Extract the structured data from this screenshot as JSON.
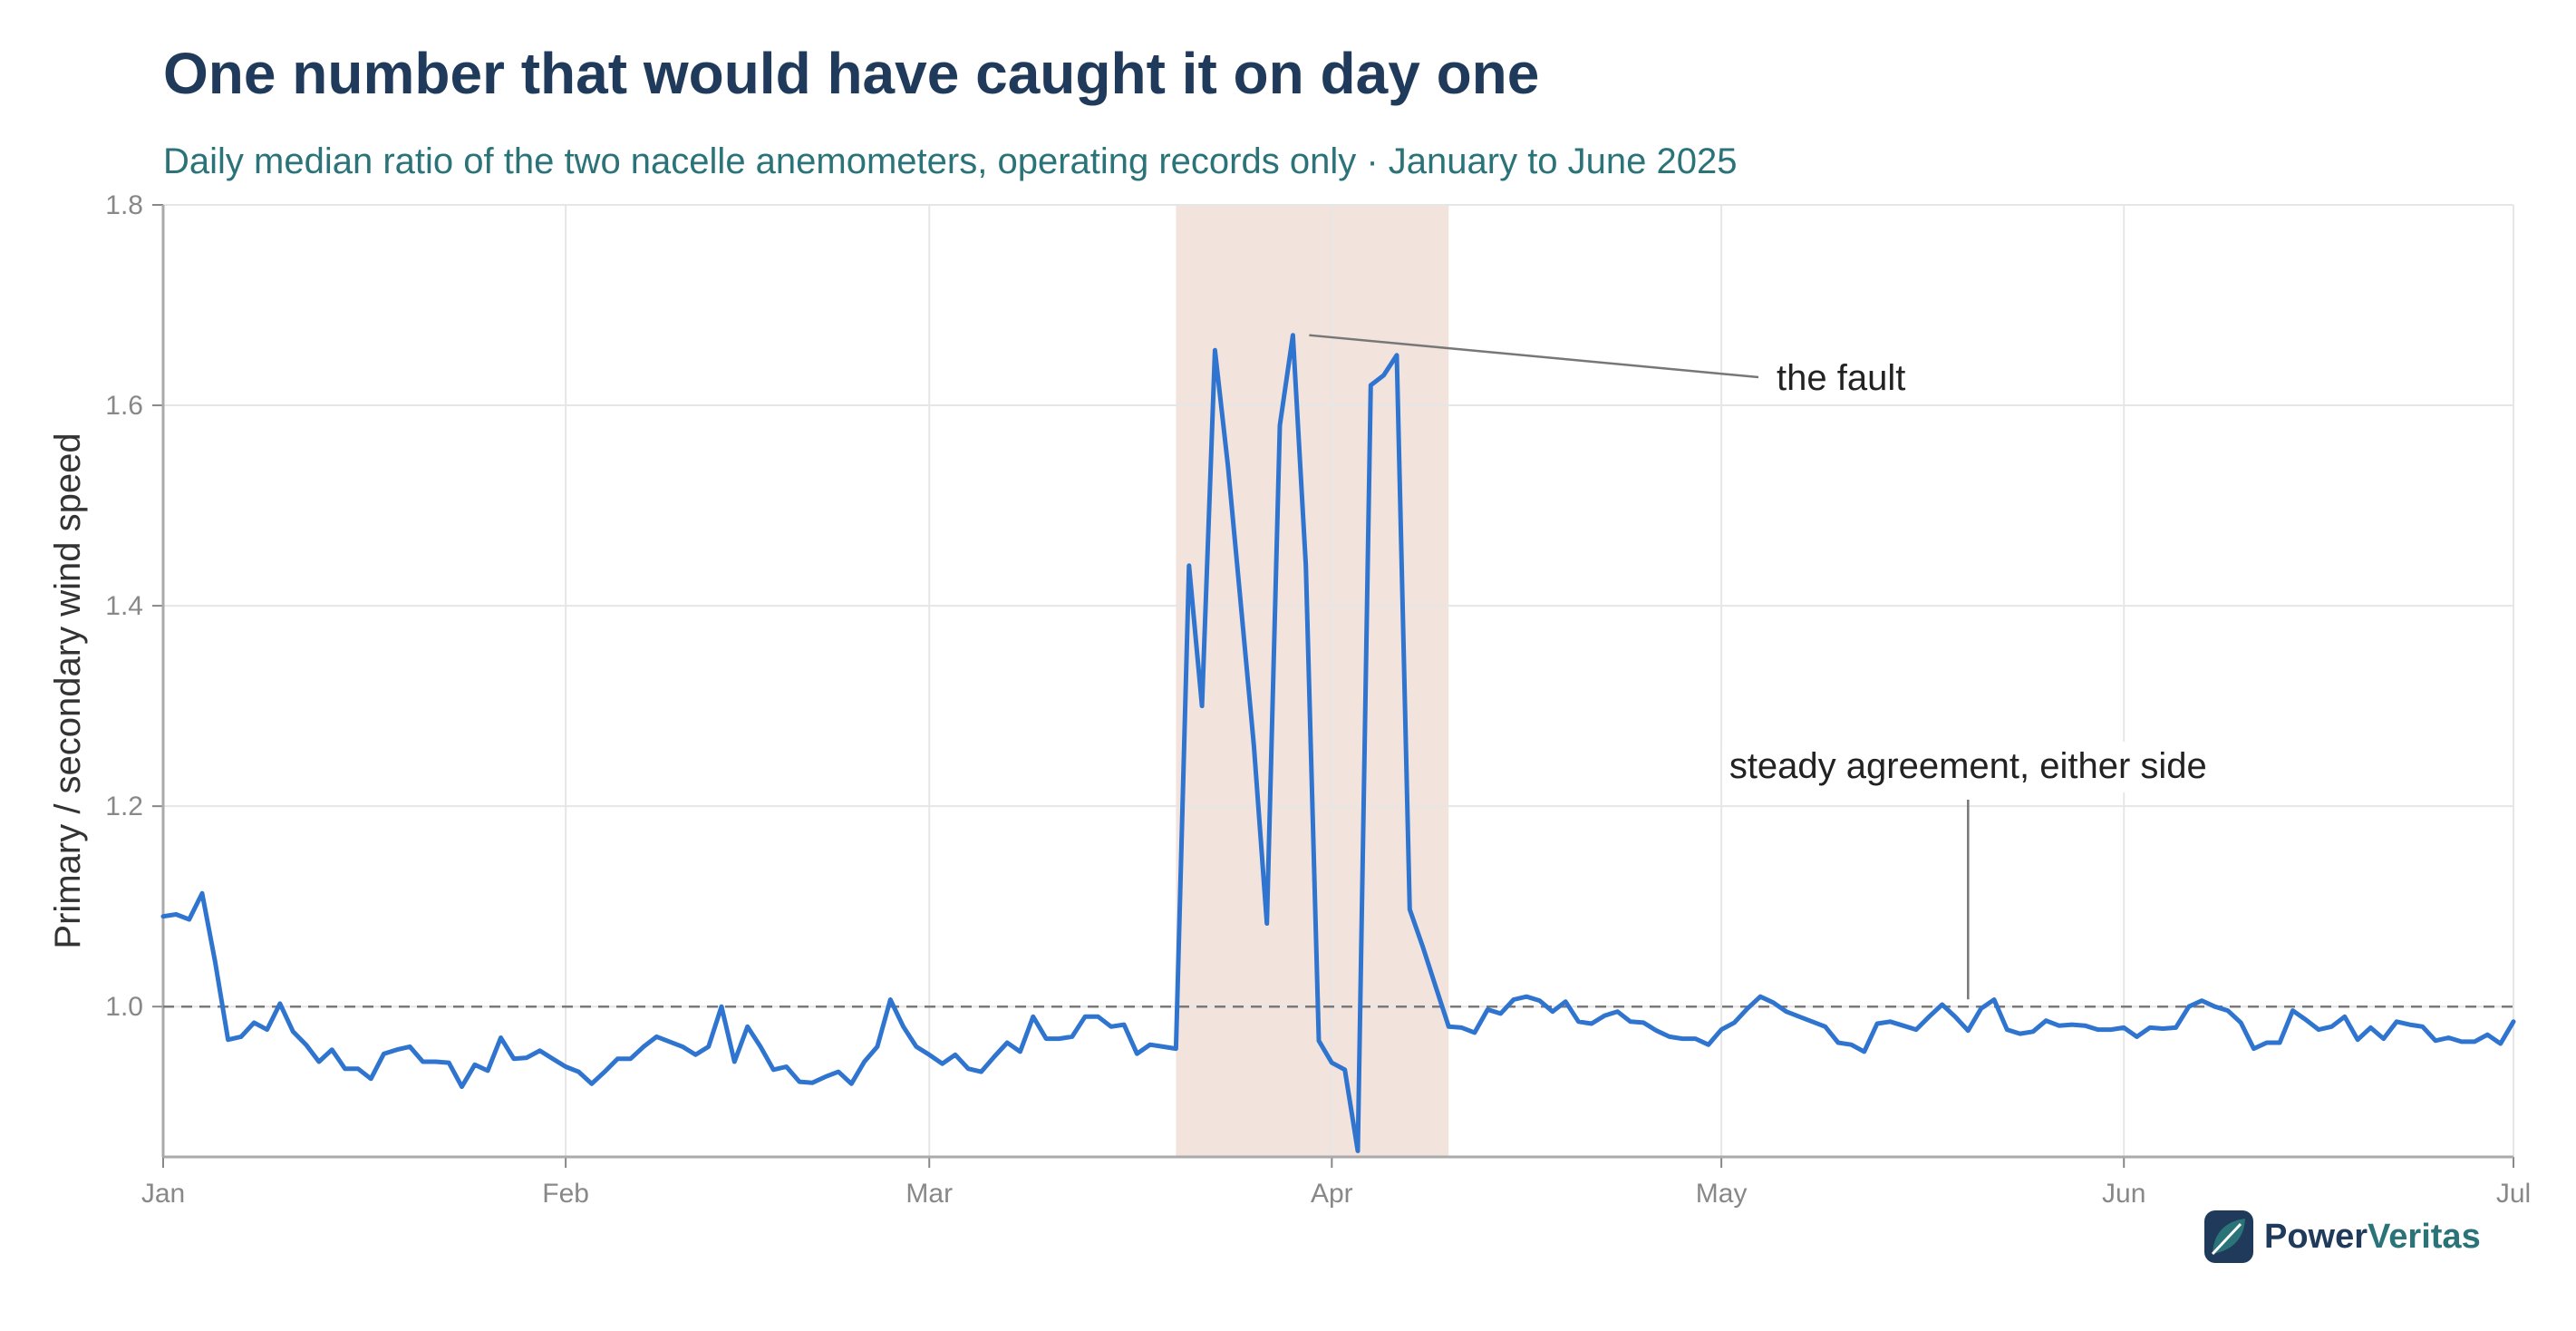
{
  "title": "One number that would have caught it on day one",
  "subtitle": "Daily median ratio of the two nacelle anemometers, operating records only · January to June 2025",
  "brand": {
    "part1": "Power",
    "part2": "Veritas",
    "icon": "leaf-logo-icon"
  },
  "colors": {
    "title": "#1f3a5a",
    "subtitle": "#2a7378",
    "line": "#2f74cf",
    "band": "#f2e3dd",
    "reference": "#7a7a7a",
    "grid": "#e6e6e6"
  },
  "chart_data": {
    "type": "line",
    "ylabel": "Primary / secondary wind speed",
    "xlabel": "",
    "ylim": [
      0.85,
      1.8
    ],
    "xlim": [
      "2025-01-01",
      "2025-07-01"
    ],
    "x_ticks": [
      {
        "date": "2025-01-01",
        "label": "Jan"
      },
      {
        "date": "2025-02-01",
        "label": "Feb"
      },
      {
        "date": "2025-03-01",
        "label": "Mar"
      },
      {
        "date": "2025-04-01",
        "label": "Apr"
      },
      {
        "date": "2025-05-01",
        "label": "May"
      },
      {
        "date": "2025-06-01",
        "label": "Jun"
      },
      {
        "date": "2025-07-01",
        "label": "Jul"
      }
    ],
    "y_ticks": [
      1.0,
      1.2,
      1.4,
      1.6,
      1.8
    ],
    "y_tick_labels": [
      "1.0",
      "1.2",
      "1.4",
      "1.6",
      "1.8"
    ],
    "grid": true,
    "reference_line": {
      "y": 1.0,
      "style": "dashed"
    },
    "shaded_band": {
      "start": "2025-03-20",
      "end": "2025-04-10"
    },
    "annotations": [
      {
        "text": "the fault",
        "point": [
          "2025-03-29",
          1.67
        ],
        "label_position": "right"
      },
      {
        "text": "steady agreement, either side",
        "point": [
          "2025-05-20",
          1.0
        ],
        "label_position": "above"
      }
    ],
    "series": [
      {
        "x": [
          "2025-01-01",
          "2025-01-02",
          "2025-01-03",
          "2025-01-04",
          "2025-01-05",
          "2025-01-06",
          "2025-01-07",
          "2025-01-08",
          "2025-01-09",
          "2025-01-10",
          "2025-01-11",
          "2025-01-12",
          "2025-01-13",
          "2025-01-14",
          "2025-01-15",
          "2025-01-16",
          "2025-01-17",
          "2025-01-18",
          "2025-01-19",
          "2025-01-20",
          "2025-01-21",
          "2025-01-22",
          "2025-01-23",
          "2025-01-24",
          "2025-01-25",
          "2025-01-26",
          "2025-01-27",
          "2025-01-28",
          "2025-01-29",
          "2025-01-30",
          "2025-01-31",
          "2025-02-01",
          "2025-02-02",
          "2025-02-03",
          "2025-02-04",
          "2025-02-05",
          "2025-02-06",
          "2025-02-07",
          "2025-02-08",
          "2025-02-09",
          "2025-02-10",
          "2025-02-11",
          "2025-02-12",
          "2025-02-13",
          "2025-02-14",
          "2025-02-15",
          "2025-02-16",
          "2025-02-17",
          "2025-02-18",
          "2025-02-19",
          "2025-02-20",
          "2025-02-21",
          "2025-02-22",
          "2025-02-23",
          "2025-02-24",
          "2025-02-25",
          "2025-02-26",
          "2025-02-27",
          "2025-02-28",
          "2025-03-01",
          "2025-03-02",
          "2025-03-03",
          "2025-03-04",
          "2025-03-05",
          "2025-03-06",
          "2025-03-07",
          "2025-03-08",
          "2025-03-09",
          "2025-03-10",
          "2025-03-11",
          "2025-03-12",
          "2025-03-13",
          "2025-03-14",
          "2025-03-15",
          "2025-03-16",
          "2025-03-17",
          "2025-03-18",
          "2025-03-19",
          "2025-03-20",
          "2025-03-21",
          "2025-03-22",
          "2025-03-23",
          "2025-03-24",
          "2025-03-25",
          "2025-03-26",
          "2025-03-27",
          "2025-03-28",
          "2025-03-29",
          "2025-03-30",
          "2025-03-31",
          "2025-04-01",
          "2025-04-02",
          "2025-04-03",
          "2025-04-04",
          "2025-04-05",
          "2025-04-06",
          "2025-04-07",
          "2025-04-08",
          "2025-04-09",
          "2025-04-10",
          "2025-04-11",
          "2025-04-12",
          "2025-04-13",
          "2025-04-14",
          "2025-04-15",
          "2025-04-16",
          "2025-04-17",
          "2025-04-18",
          "2025-04-19",
          "2025-04-20",
          "2025-04-21",
          "2025-04-22",
          "2025-04-23",
          "2025-04-24",
          "2025-04-25",
          "2025-04-26",
          "2025-04-27",
          "2025-04-28",
          "2025-04-29",
          "2025-04-30",
          "2025-05-01",
          "2025-05-02",
          "2025-05-03",
          "2025-05-04",
          "2025-05-05",
          "2025-05-06",
          "2025-05-07",
          "2025-05-08",
          "2025-05-09",
          "2025-05-10",
          "2025-05-11",
          "2025-05-12",
          "2025-05-13",
          "2025-05-14",
          "2025-05-15",
          "2025-05-16",
          "2025-05-17",
          "2025-05-18",
          "2025-05-19",
          "2025-05-20",
          "2025-05-21",
          "2025-05-22",
          "2025-05-23",
          "2025-05-24",
          "2025-05-25",
          "2025-05-26",
          "2025-05-27",
          "2025-05-28",
          "2025-05-29",
          "2025-05-30",
          "2025-05-31",
          "2025-06-01",
          "2025-06-02",
          "2025-06-03",
          "2025-06-04",
          "2025-06-05",
          "2025-06-06",
          "2025-06-07",
          "2025-06-08",
          "2025-06-09",
          "2025-06-10",
          "2025-06-11",
          "2025-06-12",
          "2025-06-13",
          "2025-06-14",
          "2025-06-15",
          "2025-06-16",
          "2025-06-17",
          "2025-06-18",
          "2025-06-19",
          "2025-06-20",
          "2025-06-21",
          "2025-06-22",
          "2025-06-23",
          "2025-06-24",
          "2025-06-25",
          "2025-06-26",
          "2025-06-27",
          "2025-06-28",
          "2025-06-29",
          "2025-06-30",
          "2025-07-01"
        ],
        "values": [
          1.09,
          1.092,
          1.087,
          1.113,
          1.045,
          0.967,
          0.97,
          0.984,
          0.977,
          1.003,
          0.975,
          0.962,
          0.945,
          0.957,
          0.938,
          0.938,
          0.928,
          0.953,
          0.957,
          0.96,
          0.945,
          0.945,
          0.944,
          0.92,
          0.942,
          0.936,
          0.969,
          0.948,
          0.949,
          0.956,
          0.948,
          0.94,
          0.935,
          0.923,
          0.935,
          0.948,
          0.948,
          0.96,
          0.97,
          0.965,
          0.96,
          0.952,
          0.96,
          1.0,
          0.945,
          0.98,
          0.96,
          0.937,
          0.94,
          0.925,
          0.924,
          0.93,
          0.935,
          0.923,
          0.945,
          0.96,
          1.007,
          0.98,
          0.96,
          0.952,
          0.943,
          0.952,
          0.938,
          0.935,
          0.95,
          0.964,
          0.955,
          0.99,
          0.968,
          0.968,
          0.97,
          0.99,
          0.99,
          0.98,
          0.982,
          0.953,
          0.962,
          0.96,
          0.958,
          1.44,
          1.3,
          1.655,
          1.54,
          1.4,
          1.26,
          1.083,
          1.58,
          1.67,
          1.44,
          0.966,
          0.944,
          0.937,
          0.856,
          1.62,
          1.63,
          1.65,
          1.097,
          1.06,
          1.02,
          0.98,
          0.979,
          0.974,
          0.997,
          0.993,
          1.007,
          1.01,
          1.006,
          0.995,
          1.005,
          0.985,
          0.983,
          0.991,
          0.995,
          0.985,
          0.984,
          0.976,
          0.97,
          0.968,
          0.968,
          0.962,
          0.977,
          0.984,
          0.998,
          1.01,
          1.004,
          0.995,
          0.99,
          0.985,
          0.98,
          0.964,
          0.962,
          0.955,
          0.983,
          0.985,
          0.981,
          0.977,
          0.99,
          1.002,
          0.99,
          0.976,
          0.998,
          1.007,
          0.977,
          0.973,
          0.975,
          0.986,
          0.981,
          0.982,
          0.981,
          0.977,
          0.977,
          0.979,
          0.97,
          0.979,
          0.978,
          0.979,
          1.0,
          1.006,
          1.0,
          0.996,
          0.984,
          0.958,
          0.964,
          0.964,
          0.996,
          0.987,
          0.977,
          0.98,
          0.99,
          0.967,
          0.979,
          0.968,
          0.985,
          0.982,
          0.98,
          0.966,
          0.969,
          0.965,
          0.965,
          0.972,
          0.963,
          0.985
        ]
      }
    ]
  }
}
